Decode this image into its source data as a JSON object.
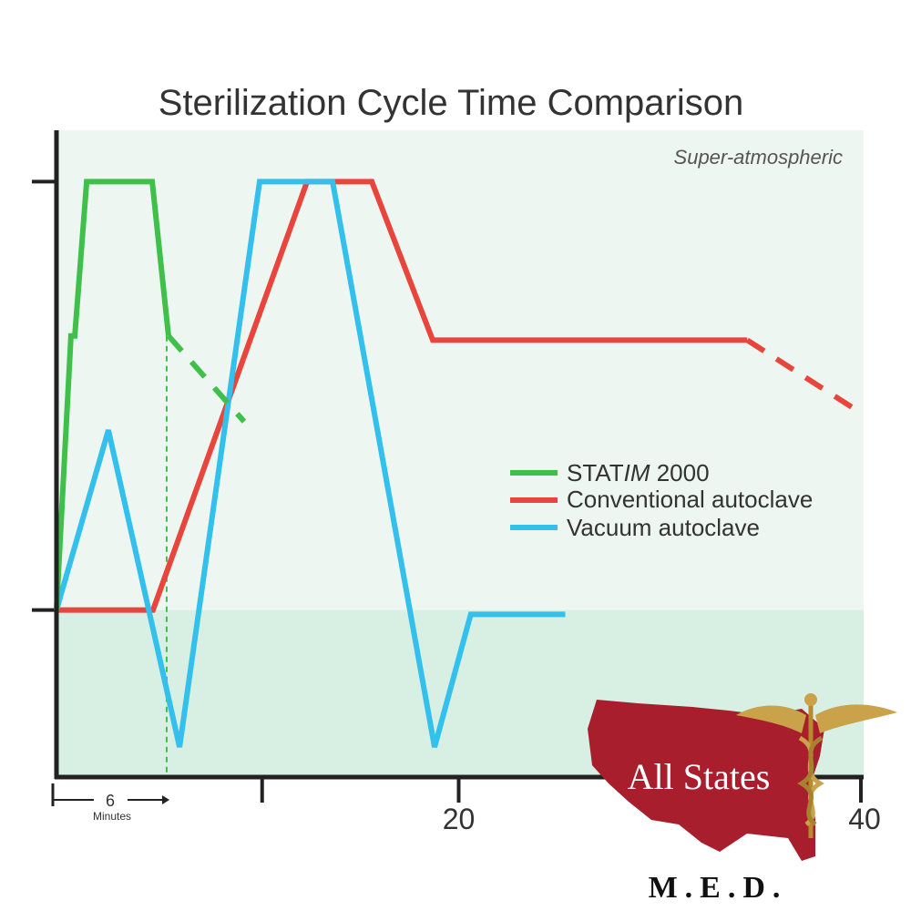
{
  "chart_data": {
    "type": "line",
    "title": "Sterilization Cycle Time Comparison",
    "region_label": "Super-atmospheric",
    "xlabel": "",
    "ylabel": "",
    "xlim": [
      0,
      40
    ],
    "ylim": [
      -0.39,
      1.12
    ],
    "x_ticks": [
      {
        "value": 10,
        "label": ""
      },
      {
        "value": 20,
        "label": "20"
      },
      {
        "value": 40,
        "label": "40"
      }
    ],
    "y_ticks": [
      0,
      1
    ],
    "grid": false,
    "legend_position": "center-right",
    "span_annotation": {
      "from": 0,
      "to": 6,
      "value_label": "6",
      "unit_label": "Minutes"
    },
    "series": [
      {
        "name": "STATIM 2000",
        "name_plain": "STAT",
        "name_italic": "IM",
        "name_suffix": " 2000",
        "color": "#3ec04a",
        "points": [
          [
            0,
            0
          ],
          [
            0.72,
            0.64
          ],
          [
            0.91,
            0.64
          ],
          [
            1.5,
            1
          ],
          [
            4.76,
            1
          ],
          [
            5.57,
            0.64
          ]
        ],
        "dashed_points": [
          [
            5.57,
            0.64
          ],
          [
            9.33,
            0.44
          ]
        ]
      },
      {
        "name": "Conventional autoclave",
        "color": "#e8453c",
        "points": [
          [
            0,
            0
          ],
          [
            4.8,
            0
          ],
          [
            12.46,
            1
          ],
          [
            15.68,
            1
          ],
          [
            18.71,
            0.63
          ],
          [
            34.35,
            0.63
          ]
        ],
        "dashed_points": [
          [
            34.35,
            0.63
          ],
          [
            40,
            0.46
          ]
        ]
      },
      {
        "name": "Vacuum autoclave",
        "color": "#33c0ec",
        "points": [
          [
            0,
            0
          ],
          [
            2.58,
            0.42
          ],
          [
            6.12,
            -0.32
          ],
          [
            10.1,
            1
          ],
          [
            13.73,
            1
          ],
          [
            18.8,
            -0.32
          ],
          [
            20.6,
            -0.01
          ],
          [
            25.3,
            -0.01
          ]
        ],
        "dashed_points": []
      }
    ]
  },
  "logo": {
    "name": "All States",
    "subtitle": "M.E.D.",
    "colors": {
      "map": "#a81e2d",
      "caduceus": "#c9a24a"
    }
  },
  "colors": {
    "upper_region": "#eef6f1",
    "lower_region": "#d8efe3",
    "axis": "#222222"
  }
}
